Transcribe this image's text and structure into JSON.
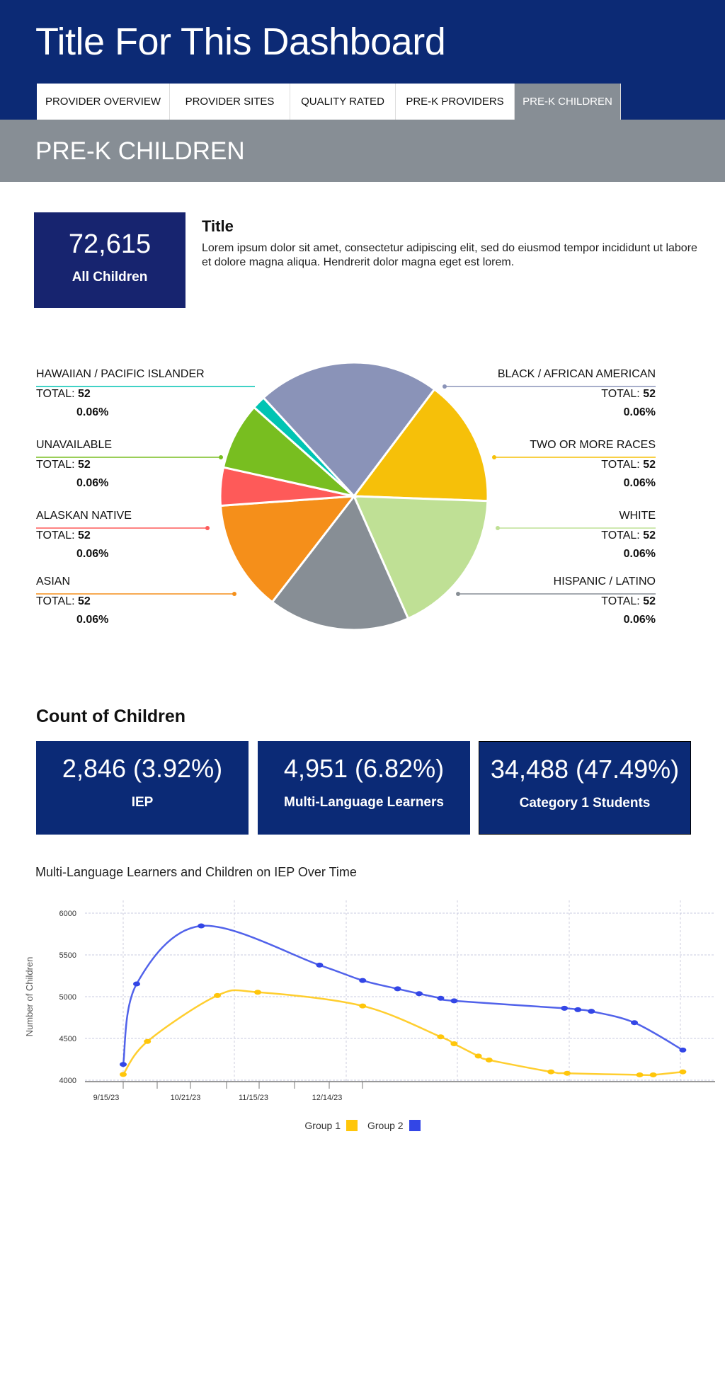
{
  "header": {
    "title": "Title For This Dashboard"
  },
  "tabs": [
    {
      "label": "PROVIDER OVERVIEW"
    },
    {
      "label": "PROVIDER SITES"
    },
    {
      "label": "QUALITY RATED"
    },
    {
      "label": "PRE-K PROVIDERS"
    },
    {
      "label": "PRE-K CHILDREN",
      "active": true
    }
  ],
  "section_title": "PRE-K CHILDREN",
  "summary": {
    "value": "72,615",
    "label": "All Children"
  },
  "intro": {
    "title": "Title",
    "text": "Lorem ipsum dolor sit amet, consectetur adipiscing elit, sed do eiusmod tempor incididunt ut labore et dolore magna aliqua. Hendrerit dolor magna eget est lorem."
  },
  "total_prefix": "TOTAL: ",
  "chart_data": [
    {
      "type": "pie",
      "slices": [
        {
          "name": "BLACK / AFRICAN AMERICAN",
          "total": "52",
          "percent": "0.06%",
          "share": 22.1,
          "color": "#8a93b8"
        },
        {
          "name": "TWO OR MORE RACES",
          "total": "52",
          "percent": "0.06%",
          "share": 15.3,
          "color": "#f6c009"
        },
        {
          "name": "WHITE",
          "total": "52",
          "percent": "0.06%",
          "share": 17.8,
          "color": "#bfe095"
        },
        {
          "name": "HISPANIC / LATINO",
          "total": "52",
          "percent": "0.06%",
          "share": 17.1,
          "color": "#878e95"
        },
        {
          "name": "ASIAN",
          "total": "52",
          "percent": "0.06%",
          "share": 13.4,
          "color": "#f58f1a"
        },
        {
          "name": "ALASKAN NATIVE",
          "total": "52",
          "percent": "0.06%",
          "share": 4.6,
          "color": "#fe5a59"
        },
        {
          "name": "UNAVAILABLE",
          "total": "52",
          "percent": "0.06%",
          "share": 8.1,
          "color": "#78be20"
        },
        {
          "name": "HAWAIIAN / PACIFIC ISLANDER",
          "total": "52",
          "percent": "0.06%",
          "share": 1.6,
          "color": "#00c4b3"
        }
      ]
    },
    {
      "type": "line",
      "title": "Multi-Language Learners and Children on IEP Over  Time",
      "ylabel": "Number of Children",
      "ylim": [
        4000,
        6000
      ],
      "yticks": [
        4000,
        4500,
        5000,
        5500,
        6000
      ],
      "xtick_labels": [
        "9/15/23",
        "10/21/23",
        "11/15/23",
        "12/14/23"
      ],
      "grid": true,
      "legend": "bottom",
      "series": [
        {
          "name": "Group 1",
          "color": "#ffc60a",
          "points": [
            [
              "2023-09-15",
              4069
            ],
            [
              "2023-09-24",
              4464
            ],
            [
              "2023-10-20",
              5014
            ],
            [
              "2023-11-04",
              5053
            ],
            [
              "2023-12-13",
              4889
            ],
            [
              "2024-01-11",
              4519
            ],
            [
              "2024-01-16",
              4436
            ],
            [
              "2024-01-25",
              4289
            ],
            [
              "2024-01-29",
              4242
            ],
            [
              "2024-02-21",
              4100
            ],
            [
              "2024-02-27",
              4083
            ],
            [
              "2024-03-25",
              4064
            ],
            [
              "2024-03-30",
              4064
            ],
            [
              "2024-04-10",
              4100
            ]
          ]
        },
        {
          "name": "Group 2",
          "color": "#3346e6",
          "points": [
            [
              "2023-09-15",
              4189
            ],
            [
              "2023-09-20",
              5153
            ],
            [
              "2023-10-14",
              5847
            ],
            [
              "2023-11-27",
              5378
            ],
            [
              "2023-12-13",
              5194
            ],
            [
              "2023-12-26",
              5094
            ],
            [
              "2024-01-03",
              5036
            ],
            [
              "2024-01-11",
              4981
            ],
            [
              "2024-01-16",
              4950
            ],
            [
              "2024-02-26",
              4861
            ],
            [
              "2024-03-02",
              4844
            ],
            [
              "2024-03-07",
              4825
            ],
            [
              "2024-03-23",
              4689
            ],
            [
              "2024-04-10",
              4361
            ]
          ]
        }
      ]
    }
  ],
  "count_section": {
    "title": "Count of Children",
    "boxes": [
      {
        "value": "2,846 (3.92%)",
        "label": "IEP"
      },
      {
        "value": "4,951 (6.82%)",
        "label": "Multi-Language Learners"
      },
      {
        "value": "34,488 (47.49%)",
        "label": "Category 1 Students"
      }
    ]
  }
}
